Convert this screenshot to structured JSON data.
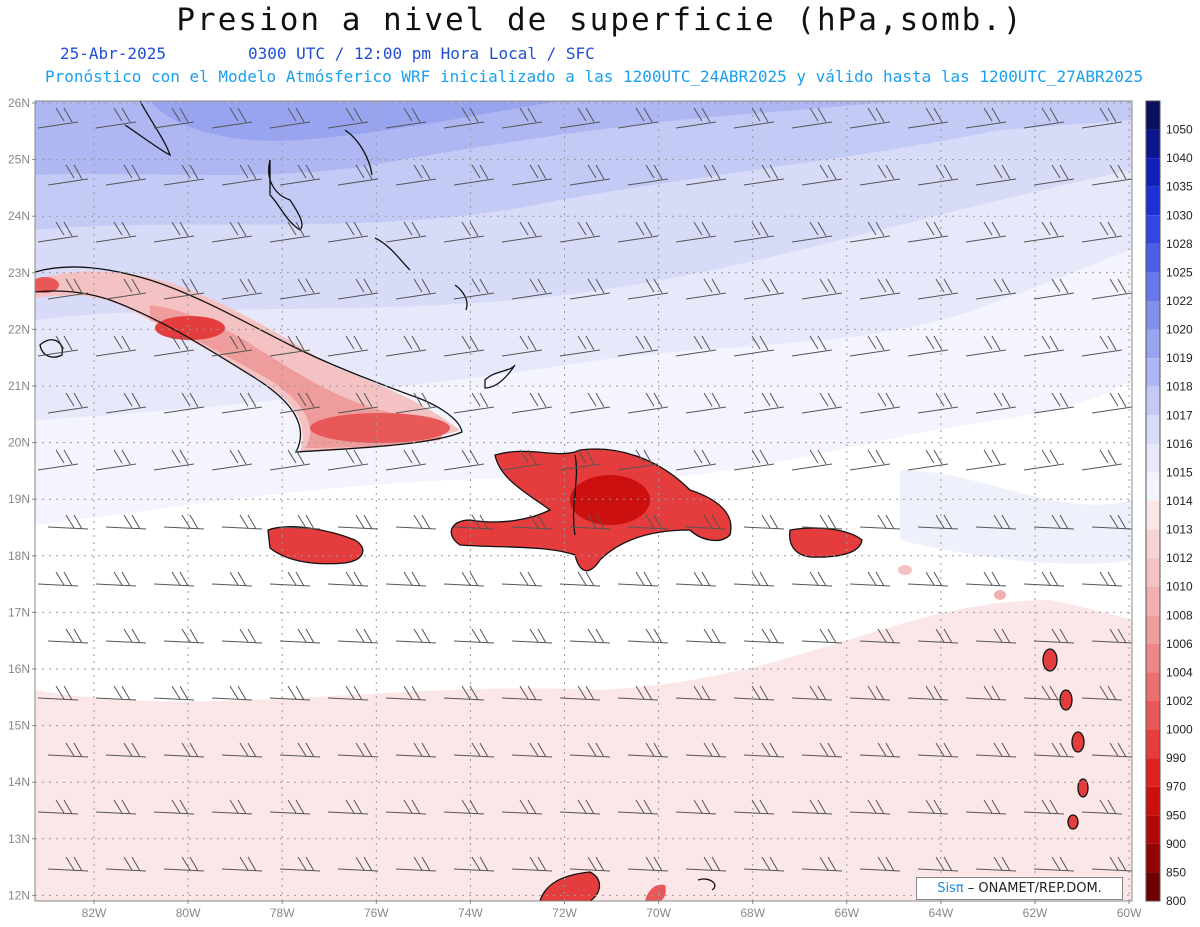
{
  "header": {
    "title": "Presion a nivel de superficie (hPa,somb.)",
    "date": "25-Abr-2025",
    "valid_time": "0300 UTC / 12:00 pm Hora Local / SFC",
    "model_info": "Pronóstico con el Modelo Atmósferico WRF inicializado a las 1200UTC_24ABR2025 y válido hasta las  1200UTC_27ABR2025"
  },
  "axes": {
    "lat_labels": [
      "26N",
      "25N",
      "24N",
      "23N",
      "22N",
      "21N",
      "20N",
      "19N",
      "18N",
      "17N",
      "16N",
      "15N",
      "14N",
      "13N",
      "12N"
    ],
    "lon_labels": [
      "82W",
      "80W",
      "78W",
      "76W",
      "74W",
      "72W",
      "70W",
      "68W",
      "66W",
      "64W",
      "62W",
      "60W"
    ]
  },
  "colorbar": {
    "levels": [
      "1050",
      "1040",
      "1035",
      "1030",
      "1028",
      "1025",
      "1022",
      "1020",
      "1019",
      "1018",
      "1017",
      "1016",
      "1015",
      "1014",
      "1013",
      "1012",
      "1010",
      "1008",
      "1006",
      "1004",
      "1002",
      "1000",
      "990",
      "970",
      "950",
      "900",
      "850",
      "800"
    ],
    "colors": [
      "#0b1060",
      "#0c168e",
      "#1020b8",
      "#1d30d6",
      "#3346e0",
      "#4d5fe6",
      "#6878ea",
      "#8190ec",
      "#98a4ef",
      "#aeb7f2",
      "#c3caf5",
      "#d7dbf8",
      "#e7e9fb",
      "#f3f4fd",
      "#fbe7e7",
      "#f7d4d4",
      "#f4c2c2",
      "#f1afaf",
      "#ee9c9c",
      "#ec8787",
      "#ea7070",
      "#e85858",
      "#e53d3d",
      "#e02020",
      "#cc0f0f",
      "#b00808",
      "#920404",
      "#700000"
    ]
  },
  "credit": {
    "sis": "Sisπ",
    "org": " – ONAMET/REP.DOM."
  }
}
